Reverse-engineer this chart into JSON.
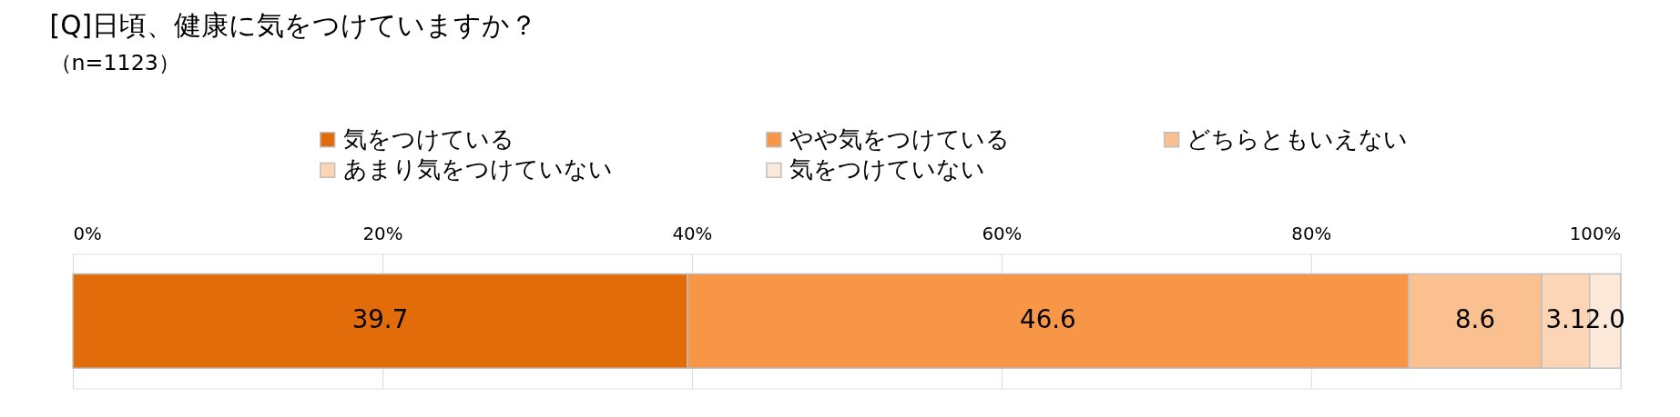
{
  "chart_data": {
    "type": "bar",
    "orientation": "horizontal",
    "stacked": true,
    "title": "[Q]日頃、健康に気をつけていますか？",
    "subtitle": "（n=1123）",
    "categories": [
      null
    ],
    "series": [
      {
        "name": "気をつけている",
        "color": "#e36c0a",
        "values": [
          39.7
        ],
        "value_labels": [
          "39.7"
        ]
      },
      {
        "name": "やや気をつけている",
        "color": "#f79646",
        "values": [
          46.6
        ],
        "value_labels": [
          "46.6"
        ]
      },
      {
        "name": "どちらともいえない",
        "color": "#fac090",
        "values": [
          8.6
        ],
        "value_labels": [
          "8.6"
        ]
      },
      {
        "name": "あまり気をつけていない",
        "color": "#fbd5b5",
        "values": [
          3.1
        ],
        "value_labels": [
          "3.1"
        ]
      },
      {
        "name": "気をつけていない",
        "color": "#fde9d9",
        "values": [
          2.0
        ],
        "value_labels": [
          "2.0"
        ]
      }
    ],
    "xlim": [
      0,
      100
    ],
    "xticks": [
      {
        "value": 0,
        "label": "0%"
      },
      {
        "value": 20,
        "label": "20%"
      },
      {
        "value": 40,
        "label": "40%"
      },
      {
        "value": 60,
        "label": "60%"
      },
      {
        "value": 80,
        "label": "80%"
      },
      {
        "value": 100,
        "label": "100%"
      }
    ],
    "grid": "x",
    "legend": "top"
  }
}
